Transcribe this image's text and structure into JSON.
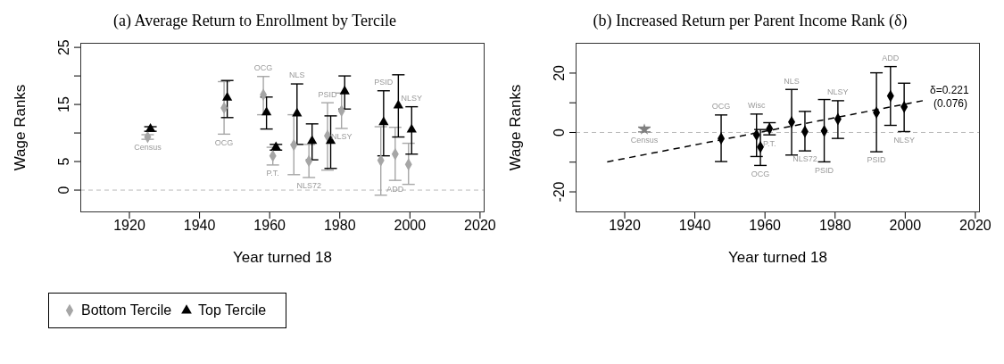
{
  "chart_data": [
    {
      "type": "scatter",
      "title": "(a) Average Return to Enrollment by Tercile",
      "xlabel": "Year turned 18",
      "ylabel": "Wage Ranks",
      "xlim": [
        1906,
        2021.3
      ],
      "xticks": [
        1920,
        1940,
        1960,
        1980,
        2000,
        2020
      ],
      "ylim": [
        -3.9,
        25.8
      ],
      "yticks": [
        0,
        5,
        {
          "value": 10,
          "label": null
        },
        15,
        {
          "value": 20,
          "label": null
        },
        25
      ],
      "legend": "bottom",
      "ref_lines": [
        {
          "axis": "y",
          "value": 0,
          "color": "#bbbbbb",
          "line_style": "dashed"
        }
      ],
      "series": [
        {
          "name": "Bottom Tercile",
          "color": "#a6a6a6",
          "marker": "diamond",
          "x": [
            1925.2,
            1947.0,
            1958.2,
            1960.9,
            1966.9,
            1971.2,
            1976.5,
            1980.5,
            1991.7,
            1995.8,
            1999.6
          ],
          "values": [
            9.3,
            14.4,
            16.7,
            6.0,
            7.9,
            5.1,
            9.5,
            13.9,
            5.2,
            6.3,
            4.5
          ],
          "errors": [
            [
              8.9,
              9.7
            ],
            [
              9.8,
              19.0
            ],
            [
              13.2,
              19.9
            ],
            [
              4.4,
              7.5
            ],
            [
              2.7,
              13.2
            ],
            [
              2.2,
              8.0
            ],
            [
              3.5,
              15.3
            ],
            [
              10.8,
              17.0
            ],
            [
              -0.9,
              11.1
            ],
            [
              1.7,
              11.0
            ],
            [
              1.0,
              8.2
            ]
          ]
        },
        {
          "name": "Top Tercile",
          "color": "#000000",
          "marker": "triangle",
          "x": [
            1926.0,
            1947.9,
            1959.1,
            1961.8,
            1967.8,
            1972.1,
            1977.4,
            1981.4,
            1992.5,
            1996.7,
            2000.5
          ],
          "values": [
            10.7,
            16.2,
            13.6,
            7.5,
            13.4,
            8.6,
            8.6,
            17.3,
            11.9,
            14.8,
            10.6
          ],
          "errors": [
            [
              10.3,
              11.1
            ],
            [
              12.7,
              19.2
            ],
            [
              10.7,
              16.3
            ],
            [
              7.0,
              8.0
            ],
            [
              8.0,
              18.6
            ],
            [
              5.3,
              11.6
            ],
            [
              3.8,
              13.0
            ],
            [
              14.2,
              20.0
            ],
            [
              6.0,
              17.4
            ],
            [
              9.3,
              20.2
            ],
            [
              6.3,
              14.6
            ]
          ]
        }
      ],
      "annotations": [
        {
          "text": "Census",
          "x": 1925.2,
          "y": 8.9
        },
        {
          "text": "OCG",
          "x": 1947.0,
          "y": 9.8
        },
        {
          "text": "OCG",
          "x": 1958.2,
          "y": 19.9
        },
        {
          "text": "P.T.",
          "x": 1960.9,
          "y": 4.4
        },
        {
          "text": "NLS",
          "x": 1967.8,
          "y": 18.6
        },
        {
          "text": "NLS72",
          "x": 1971.2,
          "y": 2.2
        },
        {
          "text": "PSID",
          "x": 1976.5,
          "y": 15.3
        },
        {
          "text": "NLSY",
          "x": 1980.5,
          "y": 10.8
        },
        {
          "text": "PSID",
          "x": 1992.5,
          "y": 17.4
        },
        {
          "text": "ADD",
          "x": 1995.8,
          "y": 1.7
        },
        {
          "text": "NLSY",
          "x": 2000.5,
          "y": 14.6
        }
      ]
    },
    {
      "type": "scatter",
      "title": "(b) Increased Return per Parent Income Rank (δ)",
      "xlabel": "Year turned 18",
      "ylabel": "Wage Ranks",
      "xlim": [
        1906,
        2021.3
      ],
      "xticks": [
        1920,
        1940,
        1960,
        1980,
        2000,
        2020
      ],
      "ylim": [
        -26.9,
        30.2
      ],
      "yticks": [
        -20,
        {
          "value": -10,
          "label": null
        },
        0,
        {
          "value": 10,
          "label": null
        },
        20
      ],
      "ref_lines": [
        {
          "axis": "y",
          "value": 0,
          "color": "#bbbbbb",
          "line_style": "dashed"
        }
      ],
      "series": [
        {
          "color": "#808080",
          "marker": "star",
          "x": [
            1925.6
          ],
          "values": [
            1.0
          ],
          "errors": [
            [
              0.2,
              1.8
            ]
          ]
        },
        {
          "color": "#000000",
          "marker": "diamond",
          "x": [
            1947.5,
            1957.6,
            1958.7,
            1961.3,
            1967.6,
            1971.4,
            1976.9,
            1980.8,
            1991.8,
            1995.8,
            1999.7
          ],
          "values": [
            -2.0,
            -0.8,
            -4.9,
            1.3,
            3.5,
            0.3,
            0.5,
            4.5,
            6.7,
            12.3,
            8.6
          ],
          "errors": [
            [
              -9.8,
              5.9
            ],
            [
              -8.1,
              6.2
            ],
            [
              -11.1,
              1.0
            ],
            [
              -0.8,
              3.3
            ],
            [
              -7.6,
              14.5
            ],
            [
              -6.2,
              7.1
            ],
            [
              -9.9,
              11.1
            ],
            [
              -2.0,
              10.7
            ],
            [
              -6.5,
              20.1
            ],
            [
              2.4,
              22.2
            ],
            [
              0.3,
              16.6
            ]
          ]
        },
        {
          "type": "line",
          "name": "δ=0.221 (0.076)",
          "color": "#000000",
          "line_style": "dashed",
          "marker": "none",
          "x": [
            1915,
            2005
          ],
          "values": [
            -9.9,
            10.7
          ]
        }
      ],
      "annotations": [
        {
          "text": "Census",
          "x": 1925.6,
          "y": 0.2
        },
        {
          "text": "OCG",
          "x": 1947.5,
          "y": 5.9
        },
        {
          "text": "Wisc",
          "x": 1957.6,
          "y": 6.2
        },
        {
          "text": "P.T.",
          "x": 1961.3,
          "y": -0.8
        },
        {
          "text": "OCG",
          "x": 1958.7,
          "y": -11.1
        },
        {
          "text": "NLS",
          "x": 1967.6,
          "y": 14.5
        },
        {
          "text": "NLS72",
          "x": 1971.4,
          "y": -6.2
        },
        {
          "text": "PSID",
          "x": 1976.9,
          "y": -9.9
        },
        {
          "text": "NLSY",
          "x": 1980.8,
          "y": 10.7
        },
        {
          "text": "PSID",
          "x": 1991.8,
          "y": -6.5
        },
        {
          "text": "ADD",
          "x": 1995.8,
          "y": 22.2
        },
        {
          "text": "NLSY",
          "x": 1999.7,
          "y": 0.3
        }
      ]
    }
  ]
}
